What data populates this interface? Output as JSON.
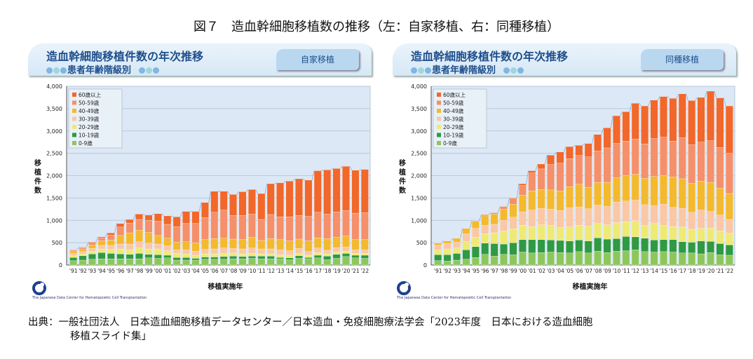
{
  "title": "図７　造血幹細胞移植数の推移（左：自家移植、右：同種移植）",
  "source_line1": "出典：一般社団法人　日本造血細胞移植データセンター／日本造血・免疫細胞療法学会「2023年度　日本における造血細胞",
  "source_line2": "移植スライド集」",
  "logo_text": "The Japanese Data Center for Hematopoietic Cell Transplantation",
  "logo_abbr": "JDCHCT",
  "colors": {
    "60+": "#f2672a",
    "50-59": "#f5906a",
    "40-49": "#f4b92e",
    "30-39": "#fbc7a4",
    "20-29": "#eeea74",
    "10-19": "#2f9a43",
    "0-9": "#8dc75c",
    "plot_bg": "#dce8f5"
  },
  "chart_data": [
    {
      "type": "bar",
      "stacked": true,
      "title": "造血幹細胞移植件数の年次推移",
      "subtitle": "患者年齢階級別",
      "tag": "自家移植",
      "xlabel": "移植実施年",
      "ylabel": "移植件数",
      "ylim": [
        0,
        4000
      ],
      "yticks": [
        "0",
        "500",
        "1,000",
        "1,500",
        "2,000",
        "2,500",
        "3,000",
        "3,500",
        "4,000"
      ],
      "grid": true,
      "legend_position": "top-left",
      "categories": [
        "'91",
        "'92",
        "'93",
        "'94",
        "'95",
        "'96",
        "'97",
        "'98",
        "'99",
        "'00",
        "'01",
        "'02",
        "'03",
        "'04",
        "'05",
        "'06",
        "'07",
        "'08",
        "'09",
        "'10",
        "'11",
        "'12",
        "'13",
        "'14",
        "'15",
        "'16",
        "'17",
        "'18",
        "'19",
        "'20",
        "'21",
        "'22"
      ],
      "series": [
        {
          "name": "0-9歳",
          "key": "0-9",
          "values": [
            100,
            110,
            130,
            140,
            140,
            140,
            140,
            140,
            160,
            150,
            160,
            110,
            110,
            110,
            130,
            130,
            130,
            140,
            140,
            150,
            140,
            140,
            140,
            120,
            150,
            140,
            160,
            120,
            150,
            190,
            160,
            150
          ]
        },
        {
          "name": "10-19歳",
          "key": "10-19",
          "values": [
            70,
            100,
            120,
            140,
            120,
            110,
            100,
            120,
            80,
            80,
            60,
            60,
            60,
            40,
            50,
            50,
            60,
            60,
            50,
            50,
            60,
            60,
            30,
            40,
            60,
            30,
            60,
            80,
            90,
            70,
            60,
            70
          ]
        },
        {
          "name": "20-29歳",
          "key": "20-29",
          "values": [
            40,
            40,
            60,
            80,
            90,
            110,
            100,
            120,
            120,
            130,
            100,
            90,
            80,
            70,
            70,
            70,
            70,
            70,
            60,
            60,
            50,
            50,
            60,
            60,
            50,
            50,
            60,
            50,
            50,
            50,
            40,
            40
          ]
        },
        {
          "name": "30-39歳",
          "key": "30-39",
          "values": [
            50,
            50,
            60,
            80,
            90,
            110,
            130,
            140,
            130,
            110,
            110,
            80,
            90,
            90,
            100,
            110,
            120,
            100,
            110,
            120,
            110,
            110,
            110,
            100,
            110,
            80,
            100,
            80,
            100,
            90,
            80,
            80
          ]
        },
        {
          "name": "40-49歳",
          "key": "40-49",
          "values": [
            40,
            50,
            80,
            100,
            120,
            190,
            250,
            260,
            240,
            190,
            170,
            170,
            180,
            190,
            220,
            230,
            220,
            210,
            210,
            240,
            190,
            230,
            230,
            220,
            210,
            240,
            230,
            260,
            230,
            250,
            230,
            230
          ]
        },
        {
          "name": "50-59歳",
          "key": "50-59",
          "values": [
            30,
            40,
            60,
            70,
            110,
            190,
            220,
            240,
            270,
            320,
            310,
            350,
            410,
            430,
            490,
            590,
            630,
            530,
            540,
            520,
            470,
            540,
            510,
            540,
            530,
            550,
            570,
            550,
            570,
            570,
            590,
            600
          ]
        },
        {
          "name": "60歳以上",
          "key": "60+",
          "values": [
            10,
            10,
            10,
            20,
            50,
            80,
            80,
            120,
            120,
            170,
            190,
            220,
            270,
            270,
            340,
            470,
            420,
            470,
            530,
            550,
            580,
            690,
            760,
            800,
            820,
            810,
            930,
            990,
            970,
            990,
            960,
            970
          ]
        }
      ]
    },
    {
      "type": "bar",
      "stacked": true,
      "title": "造血幹細胞移植件数の年次推移",
      "subtitle": "患者年齢階級別",
      "tag": "同種移植",
      "xlabel": "移植実施年",
      "ylabel": "移植件数",
      "ylim": [
        0,
        4000
      ],
      "yticks": [
        "0",
        "500",
        "1,000",
        "1,500",
        "2,000",
        "2,500",
        "3,000",
        "3,500",
        "4,000"
      ],
      "grid": true,
      "legend_position": "top-left",
      "categories": [
        "'91",
        "'92",
        "'93",
        "'94",
        "'95",
        "'96",
        "'97",
        "'98",
        "'99",
        "'00",
        "'01",
        "'02",
        "'03",
        "'04",
        "'05",
        "'06",
        "'07",
        "'08",
        "'09",
        "'10",
        "'11",
        "'12",
        "'13",
        "'14",
        "'15",
        "'16",
        "'17",
        "'18",
        "'19",
        "'20",
        "'21",
        "'22"
      ],
      "series": [
        {
          "name": "0-9歳",
          "key": "0-9",
          "values": [
            100,
            90,
            110,
            130,
            170,
            240,
            200,
            240,
            230,
            290,
            270,
            280,
            290,
            280,
            270,
            300,
            270,
            310,
            280,
            310,
            320,
            340,
            300,
            290,
            300,
            290,
            270,
            270,
            250,
            280,
            230,
            220
          ]
        },
        {
          "name": "10-19歳",
          "key": "10-19",
          "values": [
            130,
            140,
            150,
            210,
            240,
            250,
            280,
            230,
            270,
            280,
            300,
            290,
            270,
            270,
            270,
            260,
            270,
            300,
            300,
            280,
            320,
            290,
            300,
            270,
            270,
            280,
            250,
            240,
            290,
            250,
            250,
            230
          ]
        },
        {
          "name": "20-29歳",
          "key": "20-29",
          "values": [
            110,
            130,
            120,
            190,
            210,
            210,
            240,
            290,
            310,
            320,
            290,
            330,
            330,
            290,
            310,
            330,
            330,
            320,
            320,
            360,
            330,
            360,
            280,
            370,
            310,
            290,
            330,
            290,
            280,
            300,
            280,
            260
          ]
        },
        {
          "name": "30-39歳",
          "key": "30-39",
          "values": [
            100,
            120,
            130,
            170,
            200,
            190,
            190,
            240,
            260,
            300,
            370,
            370,
            360,
            380,
            430,
            410,
            390,
            410,
            410,
            460,
            460,
            460,
            470,
            400,
            480,
            430,
            420,
            380,
            410,
            370,
            360,
            310
          ]
        },
        {
          "name": "40-49歳",
          "key": "40-49",
          "values": [
            50,
            60,
            90,
            120,
            160,
            210,
            230,
            250,
            290,
            370,
            430,
            420,
            430,
            440,
            470,
            510,
            480,
            510,
            540,
            540,
            570,
            580,
            590,
            650,
            640,
            680,
            660,
            650,
            650,
            650,
            600,
            580
          ]
        },
        {
          "name": "50-59歳",
          "key": "50-59",
          "values": [
            10,
            0,
            0,
            0,
            10,
            30,
            30,
            60,
            140,
            220,
            400,
            460,
            570,
            620,
            630,
            640,
            680,
            700,
            770,
            770,
            770,
            790,
            770,
            850,
            860,
            800,
            920,
            860,
            870,
            930,
            910,
            900
          ]
        },
        {
          "name": "60歳以上",
          "key": "60+",
          "values": [
            0,
            0,
            0,
            0,
            0,
            0,
            0,
            0,
            0,
            40,
            50,
            110,
            210,
            250,
            270,
            230,
            300,
            370,
            450,
            620,
            660,
            800,
            850,
            860,
            910,
            960,
            980,
            990,
            1000,
            1110,
            1110,
            1060
          ]
        }
      ]
    }
  ]
}
